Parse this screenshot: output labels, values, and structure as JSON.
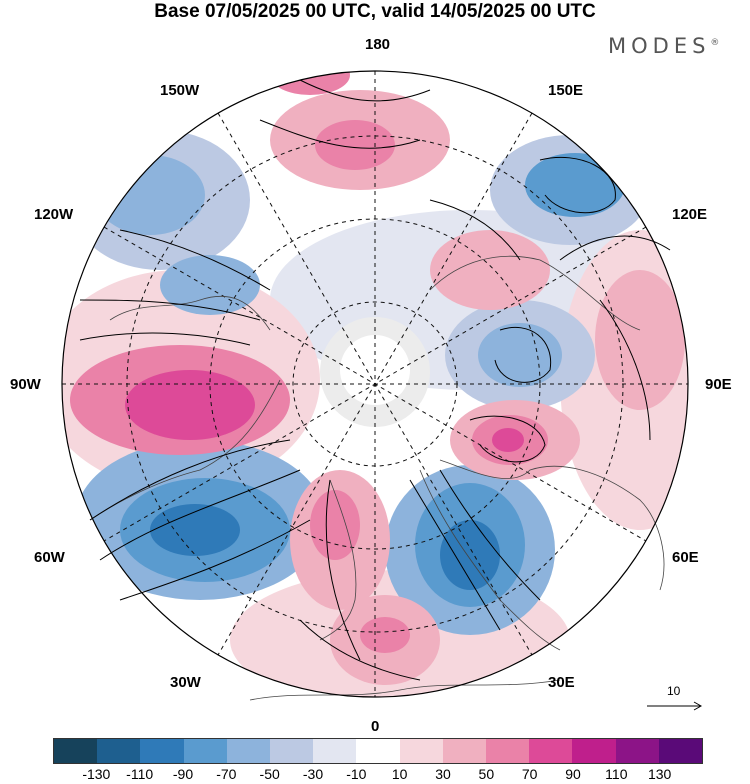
{
  "title": "Base 07/05/2025 00 UTC, valid 14/05/2025 00 UTC",
  "brand": "MODES",
  "brand_mark": "®",
  "longitude_labels": {
    "top": "180",
    "bottom": "0",
    "left": "90W",
    "right": "90E",
    "upper_left": "150W",
    "upper_right": "150E",
    "left_upper": "120W",
    "right_upper": "120E",
    "left_lower": "60W",
    "right_lower": "60E",
    "lower_left": "30W",
    "lower_right": "30E"
  },
  "reference_vector": {
    "label": "10"
  },
  "colorbar": {
    "colors": [
      "#16425b",
      "#1e5f8f",
      "#2f7ab8",
      "#5a9bcf",
      "#8db3dc",
      "#bcc9e3",
      "#e3e6f1",
      "#ffffff",
      "#f6d7dd",
      "#f0b0c0",
      "#ea82a8",
      "#dd4a98",
      "#bf1f8c",
      "#8c1487",
      "#5a0a78"
    ],
    "ticks": [
      "-130",
      "-110",
      "-90",
      "-70",
      "-50",
      "-30",
      "-10",
      "10",
      "30",
      "50",
      "70",
      "90",
      "110",
      "130"
    ]
  }
}
